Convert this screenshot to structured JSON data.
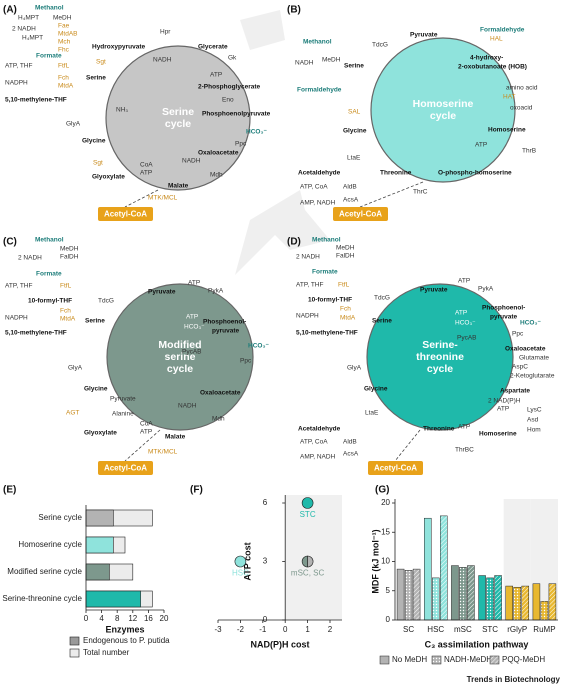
{
  "diagrams": [
    {
      "label": "(A)",
      "center": [
        "Serine",
        "cycle"
      ],
      "product": "Acetyl-CoA",
      "labels": [
        "Methanol",
        "MeDH",
        "H₄MPT",
        "2 NADH",
        "H₄MPT",
        "Fae",
        "MtdAB",
        "Mch",
        "Fhc",
        "Formate",
        "ATP, THF",
        "FtfL",
        "NADPH",
        "Fch",
        "MtdA",
        "5,10-methylene-THF",
        "Hydroxypyruvate",
        "Hpr",
        "NADH",
        "Glycerate",
        "Gk",
        "ATP",
        "2-Phosphoglycerate",
        "Eno",
        "Phosphoenolpyruvate",
        "HCO₃⁻",
        "Ppc",
        "Oxaloacetate",
        "NADH",
        "Mdh",
        "Malate",
        "CoA",
        "ATP",
        "MTK/MCL",
        "Glyoxylate",
        "Sgt",
        "Glycine",
        "GlyA",
        "Serine",
        "Sgt",
        "NH₃"
      ]
    },
    {
      "label": "(B)",
      "center": [
        "Homoserine",
        "cycle"
      ],
      "product": "Acetyl-CoA",
      "labels": [
        "Methanol",
        "MeDH",
        "NADH",
        "Formaldehyde",
        "TdcG",
        "Pyruvate",
        "Formaldehyde",
        "HAL",
        "Serine",
        "4-hydroxy-",
        "2-oxobutanoate (HOB)",
        "amino acid",
        "HAT",
        "oxoacid",
        "SAL",
        "Homoserine",
        "ATP",
        "ThrB",
        "Glycine",
        "LtaE",
        "Threonine",
        "O-phospho-homoserine",
        "ThrC",
        "Acetaldehyde",
        "ATP, CoA",
        "AldB",
        "AMP, NADH",
        "AcsA"
      ]
    },
    {
      "label": "(C)",
      "center": [
        "Modified",
        "serine",
        "cycle"
      ],
      "product": "Acetyl-CoA",
      "labels": [
        "Methanol",
        "MeDH",
        "FalDH",
        "2 NADH",
        "Formate",
        "ATP, THF",
        "FtfL",
        "10-formyl-THF",
        "NADPH",
        "Fch",
        "MtdA",
        "5,10-methylene-THF",
        "TdcG",
        "Pyruvate",
        "ATP",
        "PykA",
        "Serine",
        "ATP",
        "HCO₃⁻",
        "Phosphoenol-",
        "pyruvate",
        "HCO₃⁻",
        "PycAB",
        "Ppc",
        "GlyA",
        "Oxaloacetate",
        "NADH",
        "Mdh",
        "Glycine",
        "Pyruvate",
        "Alanine",
        "AGT",
        "Glyoxylate",
        "CoA",
        "ATP",
        "Malate",
        "MTK/MCL"
      ]
    },
    {
      "label": "(D)",
      "center": [
        "Serine-",
        "threonine",
        "cycle"
      ],
      "product": "Acetyl-CoA",
      "labels": [
        "Methanol",
        "MeDH",
        "FalDH",
        "2 NADH",
        "Formate",
        "ATP, THF",
        "FtfL",
        "10-formyl-THF",
        "NADPH",
        "Fch",
        "MtdA",
        "5,10-methylene-THF",
        "TdcG",
        "Pyruvate",
        "ATP",
        "PykA",
        "Serine",
        "ATP",
        "HCO₃⁻",
        "Phosphoenol-",
        "pyruvate",
        "HCO₃⁻",
        "Ppc",
        "PycAB",
        "Oxaloacetate",
        "Glutamate",
        "AspC",
        "2-Ketoglutarate",
        "GlyA",
        "Aspartate",
        "2 NAD(P)H",
        "ATP",
        "LysC",
        "Asd",
        "Hom",
        "Glycine",
        "LtaE",
        "Threonine",
        "ATP",
        "Homoserine",
        "ThrBC",
        "Acetaldehyde",
        "ATP, CoA",
        "AldB",
        "AMP, NADH",
        "AcsA"
      ]
    }
  ],
  "chart_e": {
    "type": "bar",
    "panel": "(E)",
    "orientation": "horizontal",
    "xlabel": "Enzymes",
    "categories": [
      "Serine cycle",
      "Homoserine cycle",
      "Modified serine cycle",
      "Serine-threonine cycle"
    ],
    "series": [
      {
        "name": "Endogenous to P. putida",
        "color": "#9a9a9a",
        "category_colors": [
          "#b3b3b3",
          "#8fe3dc",
          "#7d988d",
          "#1fb9aa"
        ],
        "values": [
          7,
          7,
          6,
          14
        ]
      },
      {
        "name": "Total number",
        "color": "#ececec",
        "values": [
          17,
          10,
          12,
          17
        ]
      }
    ],
    "xlim": [
      0,
      20
    ],
    "xticks": [
      0,
      4,
      8,
      12,
      16,
      20
    ]
  },
  "chart_f": {
    "type": "scatter",
    "panel": "(F)",
    "xlabel": "NAD(P)H cost",
    "ylabel": "ATP cost",
    "points": [
      {
        "name": "STC",
        "x": 1,
        "y": 6,
        "colors": [
          "#1fb9aa"
        ]
      },
      {
        "name": "HSC",
        "x": -2,
        "y": 3,
        "colors": [
          "#8fe3dc"
        ]
      },
      {
        "name": "mSC, SC",
        "x": 1,
        "y": 3,
        "colors": [
          "#7d988d",
          "#b3b3b3"
        ]
      }
    ],
    "xlim": [
      -3,
      2
    ],
    "ylim": [
      0,
      6
    ],
    "xticks": [
      -3,
      -2,
      -1,
      0,
      1,
      2
    ],
    "yticks": [
      0,
      3,
      6
    ]
  },
  "chart_g": {
    "type": "bar",
    "panel": "(G)",
    "xlabel": "C₃ assimilation pathway",
    "ylabel": "MDF (kJ mol⁻¹)",
    "categories": [
      "SC",
      "HSC",
      "mSC",
      "STC",
      "rGlyP",
      "RuMP"
    ],
    "category_colors": [
      "#b3b3b3",
      "#8fe3dc",
      "#7d988d",
      "#1fb9aa",
      "#e8b830",
      "#e8b830"
    ],
    "shaded": [
      false,
      false,
      false,
      false,
      true,
      true
    ],
    "series": [
      {
        "name": "No MeDH",
        "color": "#b3b3b3",
        "pattern": "solid",
        "values": [
          8.7,
          17.4,
          9.3,
          7.6,
          5.8,
          6.2
        ]
      },
      {
        "name": "NADH-MeDH",
        "color": "#b3b3b3",
        "pattern": "dots",
        "values": [
          8.5,
          7.2,
          9.0,
          7.2,
          5.6,
          3.2
        ]
      },
      {
        "name": "PQQ-MeDH",
        "color": "#b3b3b3",
        "pattern": "hatch",
        "values": [
          8.7,
          17.8,
          9.3,
          7.6,
          5.8,
          6.2
        ]
      }
    ],
    "ylim": [
      0,
      20
    ],
    "yticks": [
      0,
      5,
      10,
      15,
      20
    ]
  },
  "footer": "Trends in Biotechnology"
}
